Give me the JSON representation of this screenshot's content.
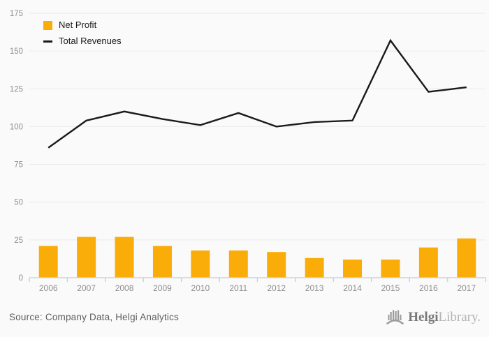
{
  "chart_data": {
    "type": "bar",
    "title": "",
    "xlabel": "",
    "ylabel": "",
    "categories": [
      "2006",
      "2007",
      "2008",
      "2009",
      "2010",
      "2011",
      "2012",
      "2013",
      "2014",
      "2015",
      "2016",
      "2017"
    ],
    "series": [
      {
        "name": "Net Profit",
        "type": "bar",
        "color": "#FAAD08",
        "values": [
          21,
          27,
          27,
          21,
          18,
          18,
          17,
          13,
          12,
          12,
          20,
          26
        ]
      },
      {
        "name": "Total Revenues",
        "type": "line",
        "color": "#1a1a1a",
        "values": [
          86,
          104,
          110,
          105,
          101,
          109,
          100,
          103,
          104,
          157,
          123,
          126
        ]
      }
    ],
    "ylim": [
      0,
      175
    ],
    "ytick_step": 25,
    "grid": true,
    "legend_position": "top-left"
  },
  "colors": {
    "background": "#fafafa",
    "gridline": "#ebebeb",
    "axis_line": "#ccd2dc",
    "tick_text": "#8f8f8f",
    "legend_text": "#1a1a1a"
  },
  "footer": {
    "source": "Source: Company Data, Helgi Analytics",
    "logo_bold": "Helgi",
    "logo_light": "Library."
  }
}
